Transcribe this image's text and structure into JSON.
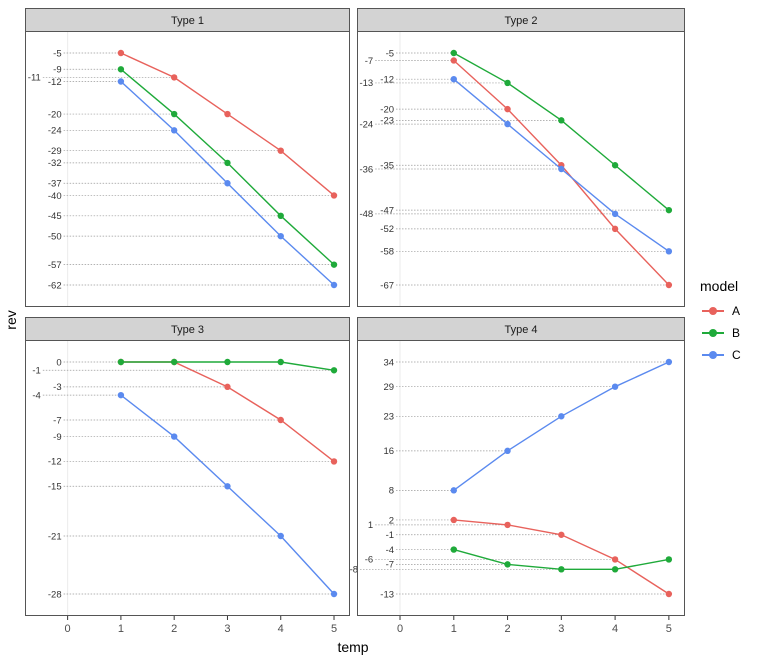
{
  "chart_data": {
    "type": "line",
    "xlabel": "temp",
    "ylabel": "rev",
    "x": [
      1,
      2,
      3,
      4,
      5
    ],
    "xlim": [
      -0.8,
      5.3
    ],
    "x_ticks": [
      "0",
      "1",
      "2",
      "3",
      "4",
      "5"
    ],
    "grid": "vertical at x=0; dotted horizontal guide lines to each labeled value",
    "legend": {
      "title": "model",
      "position": "right",
      "entries": [
        {
          "name": "A",
          "color": "#E8625C"
        },
        {
          "name": "B",
          "color": "#1FAA3A"
        },
        {
          "name": "C",
          "color": "#5B8AEF"
        }
      ]
    },
    "facets": [
      {
        "title": "Type 1",
        "series": [
          {
            "name": "A",
            "values": [
              -5,
              -11,
              -20,
              -29,
              -40
            ]
          },
          {
            "name": "B",
            "values": [
              -9,
              -20,
              -32,
              -45,
              -57
            ]
          },
          {
            "name": "C",
            "values": [
              -12,
              -24,
              -37,
              -50,
              -62
            ]
          }
        ]
      },
      {
        "title": "Type 2",
        "series": [
          {
            "name": "A",
            "values": [
              -7,
              -20,
              -35,
              -52,
              -67
            ]
          },
          {
            "name": "B",
            "values": [
              -5,
              -13,
              -23,
              -35,
              -47
            ]
          },
          {
            "name": "C",
            "values": [
              -12,
              -24,
              -36,
              -48,
              -58
            ]
          }
        ]
      },
      {
        "title": "Type 3",
        "series": [
          {
            "name": "A",
            "values": [
              0,
              0,
              -3,
              -7,
              -12
            ]
          },
          {
            "name": "B",
            "values": [
              0,
              0,
              0,
              0,
              -1
            ]
          },
          {
            "name": "C",
            "values": [
              -4,
              -9,
              -15,
              -21,
              -28
            ]
          }
        ]
      },
      {
        "title": "Type 4",
        "series": [
          {
            "name": "A",
            "values": [
              2,
              1,
              -1,
              -6,
              -13
            ]
          },
          {
            "name": "B",
            "values": [
              -4,
              -7,
              -8,
              -8,
              -6
            ]
          },
          {
            "name": "C",
            "values": [
              8,
              16,
              23,
              29,
              34
            ]
          }
        ]
      }
    ]
  }
}
